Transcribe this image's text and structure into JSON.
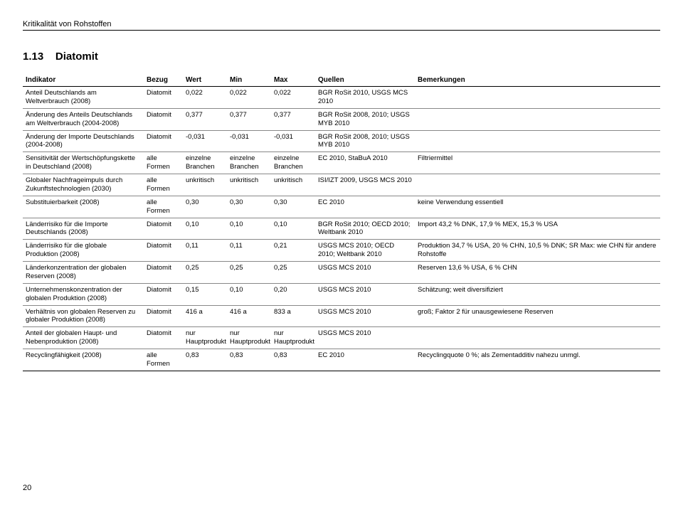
{
  "header": "Kritikalität von Rohstoffen",
  "section_number": "1.13",
  "section_name": "Diatomit",
  "page_number": "20",
  "columns": {
    "indikator": "Indikator",
    "bezug": "Bezug",
    "wert": "Wert",
    "min": "Min",
    "max": "Max",
    "quellen": "Quellen",
    "bemerkungen": "Bemerkungen"
  },
  "rows": [
    {
      "indikator": "Anteil Deutschlands am Weltverbrauch (2008)",
      "bezug": "Diatomit",
      "wert": "0,022",
      "min": "0,022",
      "max": "0,022",
      "quellen": "BGR RoSit 2010, USGS MCS 2010",
      "bemerkungen": ""
    },
    {
      "indikator": "Änderung des Anteils Deutschlands am Weltverbrauch (2004-2008)",
      "bezug": "Diatomit",
      "wert": "0,377",
      "min": "0,377",
      "max": "0,377",
      "quellen": "BGR RoSit 2008, 2010; USGS MYB 2010",
      "bemerkungen": ""
    },
    {
      "indikator": "Änderung der Importe Deutschlands (2004-2008)",
      "bezug": "Diatomit",
      "wert": "-0,031",
      "min": "-0,031",
      "max": "-0,031",
      "quellen": "BGR RoSit 2008, 2010; USGS MYB 2010",
      "bemerkungen": ""
    },
    {
      "indikator": "Sensitivität der Wertschöpfungskette in Deutschland (2008)",
      "bezug": "alle Formen",
      "wert": "einzelne Branchen",
      "min": "einzelne Branchen",
      "max": "einzelne Branchen",
      "quellen": "EC 2010, StaBuA 2010",
      "bemerkungen": "Filtriermittel"
    },
    {
      "indikator": "Globaler Nachfrageimpuls durch Zukunftstechnologien (2030)",
      "bezug": "alle Formen",
      "wert": "unkritisch",
      "min": "unkritisch",
      "max": "unkritisch",
      "quellen": "ISI/IZT 2009, USGS MCS 2010",
      "bemerkungen": ""
    },
    {
      "indikator": "Substituierbarkeit (2008)",
      "bezug": "alle Formen",
      "wert": "0,30",
      "min": "0,30",
      "max": "0,30",
      "quellen": "EC 2010",
      "bemerkungen": "keine Verwendung essentiell"
    },
    {
      "indikator": "Länderrisiko für die Importe Deutschlands (2008)",
      "bezug": "Diatomit",
      "wert": "0,10",
      "min": "0,10",
      "max": "0,10",
      "quellen": "BGR RoSit 2010; OECD 2010; Weltbank 2010",
      "bemerkungen": "Import 43,2 % DNK, 17,9 % MEX, 15,3 % USA"
    },
    {
      "indikator": "Länderrisiko für die globale Produktion (2008)",
      "bezug": "Diatomit",
      "wert": "0,11",
      "min": "0,11",
      "max": "0,21",
      "quellen": "USGS MCS 2010; OECD 2010; Weltbank 2010",
      "bemerkungen": "Produktion 34,7 % USA, 20 % CHN, 10,5 % DNK; SR Max: wie CHN für andere Rohstoffe"
    },
    {
      "indikator": "Länderkonzentration der globalen Reserven (2008)",
      "bezug": "Diatomit",
      "wert": "0,25",
      "min": "0,25",
      "max": "0,25",
      "quellen": "USGS MCS 2010",
      "bemerkungen": "Reserven 13,6 % USA, 6 % CHN"
    },
    {
      "indikator": "Unternehmenskonzentration der globalen Produktion (2008)",
      "bezug": "Diatomit",
      "wert": "0,15",
      "min": "0,10",
      "max": "0,20",
      "quellen": "USGS MCS 2010",
      "bemerkungen": "Schätzung; weit diversifiziert"
    },
    {
      "indikator": "Verhältnis von globalen Reserven zu globaler Produktion (2008)",
      "bezug": "Diatomit",
      "wert": "416 a",
      "min": "416 a",
      "max": "833 a",
      "quellen": "USGS MCS 2010",
      "bemerkungen": "groß; Faktor 2 für unausgewiesene Reserven"
    },
    {
      "indikator": "Anteil der globalen Haupt- und Nebenproduktion (2008)",
      "bezug": "Diatomit",
      "wert": "nur Hauptprodukt",
      "min": "nur Hauptprodukt",
      "max": "nur Hauptprodukt",
      "quellen": "USGS MCS 2010",
      "bemerkungen": ""
    },
    {
      "indikator": "Recyclingfähigkeit (2008)",
      "bezug": "alle Formen",
      "wert": "0,83",
      "min": "0,83",
      "max": "0,83",
      "quellen": "EC 2010",
      "bemerkungen": "Recyclingquote 0 %; als Zementadditiv nahezu unmgl."
    }
  ]
}
